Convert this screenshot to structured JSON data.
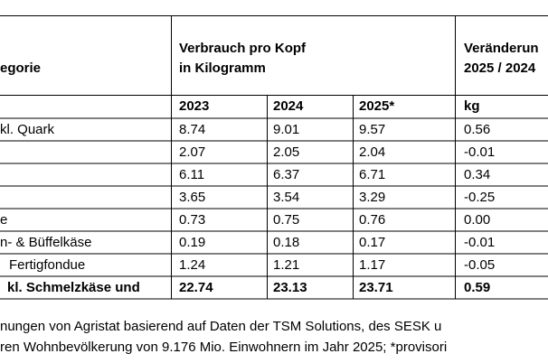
{
  "table": {
    "header": {
      "category": "egorie",
      "consumption": [
        "Verbrauch pro Kopf",
        "in Kilogramm"
      ],
      "change": [
        "Veränderun",
        "2025 / 2024"
      ]
    },
    "subheader": [
      "2023",
      "2024",
      "2025*",
      "kg"
    ],
    "rows": [
      [
        "kl. Quark",
        "8.74",
        "9.01",
        "9.57",
        "0.56"
      ],
      [
        "",
        "2.07",
        "2.05",
        "2.04",
        "-0.01"
      ],
      [
        "",
        "6.11",
        "6.37",
        "6.71",
        "0.34"
      ],
      [
        "",
        "3.65",
        "3.54",
        "3.29",
        "-0.25"
      ],
      [
        "e",
        "0.73",
        "0.75",
        "0.76",
        "0.00"
      ],
      [
        "n- & Büffelkäse",
        "0.19",
        "0.18",
        "0.17",
        "-0.01"
      ],
      [
        "Fertigfondue",
        "1.24",
        "1.21",
        "1.17",
        "-0.05"
      ]
    ],
    "total": [
      "kl. Schmelzkäse und",
      "22.74",
      "23.13",
      "23.71",
      "0.59"
    ]
  },
  "footer": [
    "nungen von Agristat basierend auf Daten der TSM Solutions, des SESK u",
    "ren Wohnbevölkerung von 9.176 Mio. Einwohnern im Jahr 2025; *provisori"
  ]
}
